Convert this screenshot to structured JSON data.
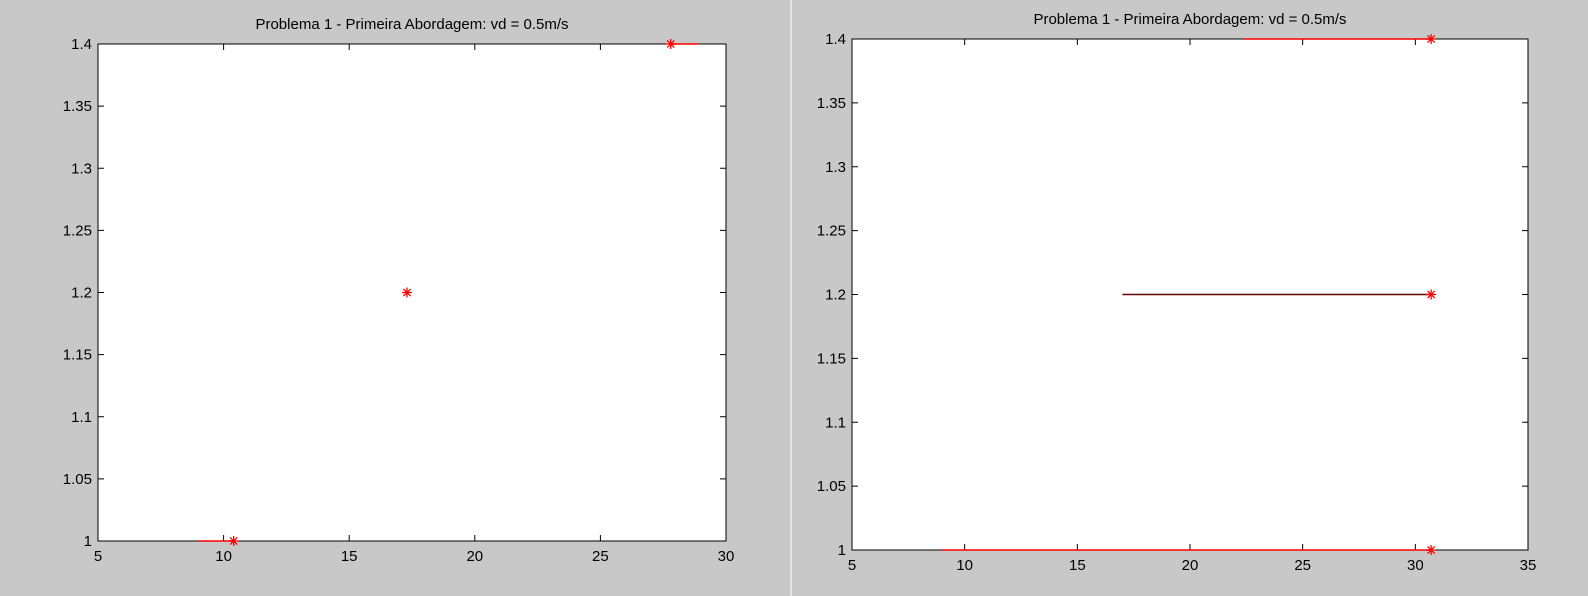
{
  "chart_data": [
    {
      "type": "line",
      "title": "Problema 1 - Primeira Abordagem: vd = 0.5m/s",
      "xlim": [
        5,
        30
      ],
      "ylim": [
        1,
        1.4
      ],
      "x_ticks": [
        5,
        10,
        15,
        20,
        25,
        30
      ],
      "y_ticks": [
        1,
        1.05,
        1.1,
        1.15,
        1.2,
        1.25,
        1.3,
        1.35,
        1.4
      ],
      "x_tick_labels": [
        "5",
        "10",
        "15",
        "20",
        "25",
        "30"
      ],
      "y_tick_labels": [
        "1",
        "1.05",
        "1.1",
        "1.15",
        "1.2",
        "1.25",
        "1.3",
        "1.35",
        "1.4"
      ],
      "grid": false,
      "line_color": "#ff0000",
      "marker_color": "#ff0000",
      "marker": "*",
      "lines": [
        {
          "x": [
            9,
            10.4
          ],
          "y": [
            1,
            1
          ]
        },
        {
          "x": [
            27.8,
            28.9
          ],
          "y": [
            1.4,
            1.4
          ]
        }
      ],
      "markers": [
        {
          "x": 10.4,
          "y": 1
        },
        {
          "x": 17.3,
          "y": 1.2
        },
        {
          "x": 27.8,
          "y": 1.4
        }
      ]
    },
    {
      "type": "line",
      "title": "Problema 1 - Primeira Abordagem: vd = 0.5m/s",
      "xlim": [
        5,
        35
      ],
      "ylim": [
        1,
        1.4
      ],
      "x_ticks": [
        5,
        10,
        15,
        20,
        25,
        30,
        35
      ],
      "y_ticks": [
        1,
        1.05,
        1.1,
        1.15,
        1.2,
        1.25,
        1.3,
        1.35,
        1.4
      ],
      "x_tick_labels": [
        "5",
        "10",
        "15",
        "20",
        "25",
        "30",
        "35"
      ],
      "y_tick_labels": [
        "1",
        "1.05",
        "1.1",
        "1.15",
        "1.2",
        "1.25",
        "1.3",
        "1.35",
        "1.4"
      ],
      "grid": false,
      "line_color": "#ff0000",
      "marker_color": "#ff0000",
      "marker": "*",
      "lines": [
        {
          "x": [
            9,
            30.7
          ],
          "y": [
            1,
            1
          ]
        },
        {
          "x": [
            17,
            30.7
          ],
          "y": [
            1.2,
            1.2
          ]
        },
        {
          "x": [
            22.4,
            30.7
          ],
          "y": [
            1.4,
            1.4
          ]
        }
      ],
      "markers": [
        {
          "x": 30.7,
          "y": 1
        },
        {
          "x": 30.7,
          "y": 1.2
        },
        {
          "x": 30.7,
          "y": 1.4
        }
      ]
    }
  ]
}
